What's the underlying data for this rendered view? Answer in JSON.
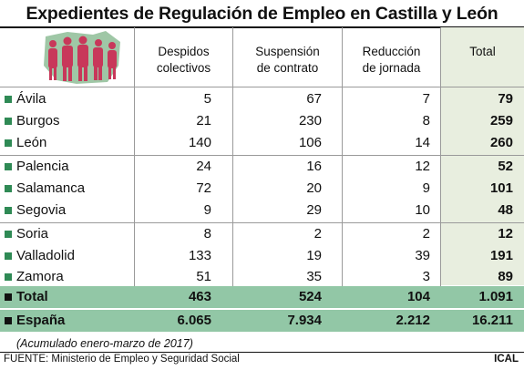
{
  "title": "Expedientes de Regulación de Empleo en Castilla y León",
  "columns": [
    {
      "line1": "Despidos",
      "line2": "colectivos"
    },
    {
      "line1": "Suspensión",
      "line2": "de contrato"
    },
    {
      "line1": "Reducción",
      "line2": "de jornada"
    },
    {
      "line1": "Total",
      "line2": ""
    }
  ],
  "rows": [
    {
      "name": "Ávila",
      "despidos": "5",
      "suspension": "67",
      "reduccion": "7",
      "total": "79"
    },
    {
      "name": "Burgos",
      "despidos": "21",
      "suspension": "230",
      "reduccion": "8",
      "total": "259"
    },
    {
      "name": "León",
      "despidos": "140",
      "suspension": "106",
      "reduccion": "14",
      "total": "260"
    },
    {
      "name": "Palencia",
      "despidos": "24",
      "suspension": "16",
      "reduccion": "12",
      "total": "52"
    },
    {
      "name": "Salamanca",
      "despidos": "72",
      "suspension": "20",
      "reduccion": "9",
      "total": "101"
    },
    {
      "name": "Segovia",
      "despidos": "9",
      "suspension": "29",
      "reduccion": "10",
      "total": "48"
    },
    {
      "name": "Soria",
      "despidos": "8",
      "suspension": "2",
      "reduccion": "2",
      "total": "12"
    },
    {
      "name": "Valladolid",
      "despidos": "133",
      "suspension": "19",
      "reduccion": "39",
      "total": "191"
    },
    {
      "name": "Zamora",
      "despidos": "51",
      "suspension": "35",
      "reduccion": "3",
      "total": "89"
    }
  ],
  "summary": [
    {
      "name": "Total",
      "despidos": "463",
      "suspension": "524",
      "reduccion": "104",
      "total": "1.091"
    },
    {
      "name": "España",
      "despidos": "6.065",
      "suspension": "7.934",
      "reduccion": "2.212",
      "total": "16.211"
    }
  ],
  "note": "(Acumulado enero-marzo de 2017)",
  "source": "FUENTE: Ministerio de Empleo y Seguridad Social",
  "agency": "ICAL",
  "colors": {
    "bullet": "#2f8a55",
    "total_column": "#e8eedf",
    "summary_row": "#92c7a6",
    "figures": "#c8385a",
    "map": "#9fc7a6"
  }
}
